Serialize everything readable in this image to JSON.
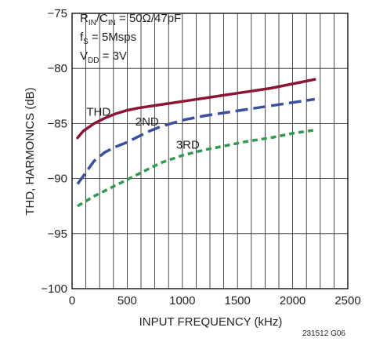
{
  "chart_data": {
    "type": "line",
    "xlabel": "INPUT FREQUENCY (kHz)",
    "ylabel": "THD, HARMONICS (dB)",
    "xlim": [
      0,
      2500
    ],
    "ylim": [
      -100,
      -75
    ],
    "xticks": [
      0,
      500,
      1000,
      1500,
      2000,
      2500
    ],
    "yticks": [
      -100,
      -95,
      -90,
      -85,
      -80,
      -75
    ],
    "grid": true,
    "conditions": {
      "line1": {
        "main": "R",
        "sub1": "IN",
        "mid": "/C",
        "sub2": "IN",
        "rest": " = 50Ω/47pF"
      },
      "line2": {
        "main": "f",
        "sub": "S",
        "rest": " = 5Msps"
      },
      "line3": {
        "main": "V",
        "sub": "DD",
        "rest": " = 3V"
      }
    },
    "figure_id": "231512 G06",
    "series": [
      {
        "name": "THD",
        "color": "#8b1535",
        "dash": "solid",
        "label_at": [
          240,
          -84.3
        ],
        "x": [
          50,
          100,
          200,
          300,
          400,
          500,
          600,
          800,
          1000,
          1200,
          1400,
          1600,
          1800,
          2000,
          2200
        ],
        "y": [
          -86.3,
          -85.7,
          -85.0,
          -84.5,
          -84.1,
          -83.8,
          -83.6,
          -83.3,
          -83.0,
          -82.7,
          -82.4,
          -82.1,
          -81.8,
          -81.4,
          -81.0
        ]
      },
      {
        "name": "2ND",
        "color": "#3a4fa0",
        "dash": "long",
        "label_at": [
          680,
          -85.2
        ],
        "x": [
          50,
          100,
          200,
          300,
          400,
          500,
          600,
          700,
          800,
          1000,
          1200,
          1400,
          1600,
          1800,
          2000,
          2200
        ],
        "y": [
          -90.5,
          -89.8,
          -88.4,
          -87.6,
          -87.1,
          -86.7,
          -86.2,
          -85.7,
          -85.3,
          -84.7,
          -84.3,
          -84.0,
          -83.7,
          -83.4,
          -83.1,
          -82.8
        ]
      },
      {
        "name": "3RD",
        "color": "#2e9a52",
        "dash": "short",
        "label_at": [
          1050,
          -87.3
        ],
        "x": [
          50,
          200,
          400,
          600,
          800,
          1000,
          1200,
          1400,
          1600,
          1800,
          2000,
          2200
        ],
        "y": [
          -92.5,
          -91.6,
          -90.6,
          -89.6,
          -88.6,
          -87.9,
          -87.4,
          -87.0,
          -86.6,
          -86.3,
          -85.9,
          -85.6
        ]
      }
    ]
  }
}
